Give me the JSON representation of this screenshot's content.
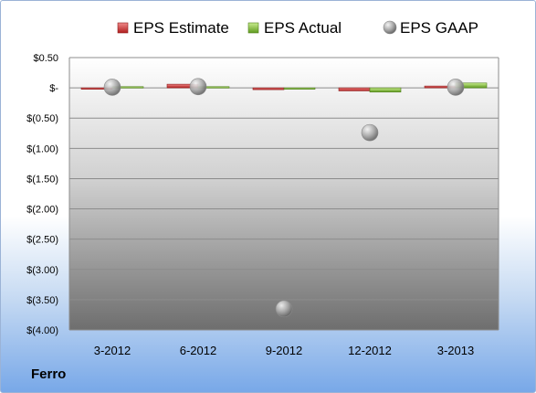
{
  "company_label": "Ferro",
  "colors": {
    "estimate": "#d03a3a",
    "actual": "#8dc63f",
    "gaap": "#a6a6a6"
  },
  "chart_data": {
    "type": "bar",
    "categories": [
      "3-2012",
      "6-2012",
      "9-2012",
      "12-2012",
      "3-2013"
    ],
    "series": [
      {
        "name": "EPS Estimate",
        "kind": "bar",
        "values": [
          0.0,
          0.06,
          -0.03,
          -0.05,
          0.03
        ]
      },
      {
        "name": "EPS Actual",
        "kind": "bar",
        "values": [
          0.02,
          0.02,
          -0.01,
          -0.07,
          0.08
        ]
      },
      {
        "name": "EPS GAAP",
        "kind": "scatter",
        "values": [
          0.01,
          0.02,
          -3.65,
          -0.74,
          0.01
        ]
      }
    ],
    "y_ticks": [
      {
        "value": 0.5,
        "label": "$0.50"
      },
      {
        "value": 0.0,
        "label": "$-"
      },
      {
        "value": -0.5,
        "label": "$(0.50)"
      },
      {
        "value": -1.0,
        "label": "$(1.00)"
      },
      {
        "value": -1.5,
        "label": "$(1.50)"
      },
      {
        "value": -2.0,
        "label": "$(2.00)"
      },
      {
        "value": -2.5,
        "label": "$(2.50)"
      },
      {
        "value": -3.0,
        "label": "$(3.00)"
      },
      {
        "value": -3.5,
        "label": "$(3.50)"
      },
      {
        "value": -4.0,
        "label": "$(4.00)"
      }
    ],
    "ylim": [
      -4.0,
      0.5
    ],
    "grid": true,
    "legend_position": "top",
    "title": "",
    "xlabel": "",
    "ylabel": ""
  }
}
